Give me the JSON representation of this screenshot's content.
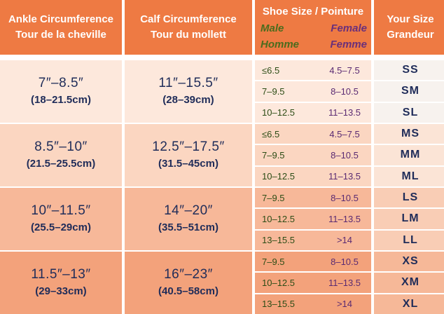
{
  "headers": {
    "ankle_en": "Ankle Circumference",
    "ankle_fr": "Tour de la cheville",
    "calf_en": "Calf Circumference",
    "calf_fr": "Tour du mollett",
    "shoe_title": "Shoe Size / Pointure",
    "male_en": "Male",
    "male_fr": "Homme",
    "female_en": "Female",
    "female_fr": "Femme",
    "size_en": "Your Size",
    "size_fr": "Grandeur"
  },
  "groups": [
    {
      "ankle": "7″–8.5″",
      "ankle_cm": "(18–21.5cm)",
      "calf": "11″–15.5″",
      "calf_cm": "(28–39cm)"
    },
    {
      "ankle": "8.5″–10″",
      "ankle_cm": "(21.5–25.5cm)",
      "calf": "12.5″–17.5″",
      "calf_cm": "(31.5–45cm)"
    },
    {
      "ankle": "10″–11.5″",
      "ankle_cm": "(25.5–29cm)",
      "calf": "14″–20″",
      "calf_cm": "(35.5–51cm)"
    },
    {
      "ankle": "11.5″–13″",
      "ankle_cm": "(29–33cm)",
      "calf": "16″–23″",
      "calf_cm": "(40.5–58cm)"
    }
  ],
  "rows": [
    {
      "male": "≤6.5",
      "female": "4.5–7.5",
      "size": "SS"
    },
    {
      "male": "7–9.5",
      "female": "8–10.5",
      "size": "SM"
    },
    {
      "male": "10–12.5",
      "female": "11–13.5",
      "size": "SL"
    },
    {
      "male": "≤6.5",
      "female": "4.5–7.5",
      "size": "MS"
    },
    {
      "male": "7–9.5",
      "female": "8–10.5",
      "size": "MM"
    },
    {
      "male": "10–12.5",
      "female": "11–13.5",
      "size": "ML"
    },
    {
      "male": "7–9.5",
      "female": "8–10.5",
      "size": "LS"
    },
    {
      "male": "10–12.5",
      "female": "11–13.5",
      "size": "LM"
    },
    {
      "male": "13–15.5",
      "female": ">14",
      "size": "LL"
    },
    {
      "male": "7–9.5",
      "female": "8–10.5",
      "size": "XS"
    },
    {
      "male": "10–12.5",
      "female": "11–13.5",
      "size": "XM"
    },
    {
      "male": "13–15.5",
      "female": ">14",
      "size": "XL"
    }
  ],
  "colors": {
    "header": "#ee7a43",
    "text_navy": "#1f2c59",
    "male_green": "#4b6c1d",
    "female_purple": "#6a2f7a"
  }
}
